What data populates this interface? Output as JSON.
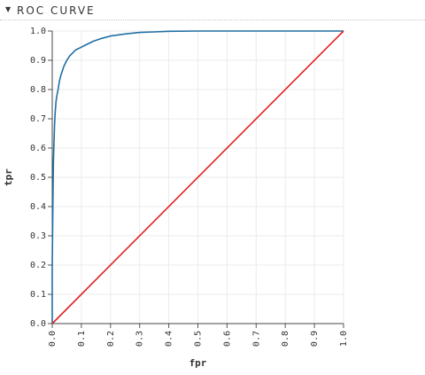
{
  "section": {
    "title": "ROC CURVE",
    "toggle_icon": "caret-down-icon"
  },
  "chart_data": {
    "type": "line",
    "title": "",
    "xlabel": "fpr",
    "ylabel": "tpr",
    "xlim": [
      0.0,
      1.0
    ],
    "ylim": [
      0.0,
      1.0
    ],
    "grid": true,
    "x_ticks": [
      "0.0",
      "0.1",
      "0.2",
      "0.3",
      "0.4",
      "0.5",
      "0.6",
      "0.7",
      "0.8",
      "0.9",
      "1.0"
    ],
    "y_ticks": [
      "0.0",
      "0.1",
      "0.2",
      "0.3",
      "0.4",
      "0.5",
      "0.6",
      "0.7",
      "0.8",
      "0.9",
      "1.0"
    ],
    "series": [
      {
        "color": "#1f6fa3",
        "x": [
          0.0,
          0.0,
          0.002,
          0.004,
          0.006,
          0.008,
          0.01,
          0.013,
          0.016,
          0.02,
          0.025,
          0.03,
          0.04,
          0.05,
          0.06,
          0.07,
          0.08,
          0.1,
          0.12,
          0.14,
          0.17,
          0.2,
          0.25,
          0.3,
          0.35,
          0.4,
          0.5,
          0.6,
          0.7,
          0.8,
          0.9,
          1.0
        ],
        "y": [
          0.0,
          0.2,
          0.4,
          0.55,
          0.62,
          0.68,
          0.72,
          0.76,
          0.78,
          0.8,
          0.83,
          0.85,
          0.88,
          0.9,
          0.915,
          0.925,
          0.935,
          0.945,
          0.955,
          0.965,
          0.975,
          0.983,
          0.99,
          0.995,
          0.997,
          0.999,
          1.0,
          1.0,
          1.0,
          1.0,
          1.0,
          1.0
        ]
      },
      {
        "color": "#e02020",
        "x": [
          0.0,
          1.0
        ],
        "y": [
          0.0,
          1.0
        ]
      }
    ]
  }
}
